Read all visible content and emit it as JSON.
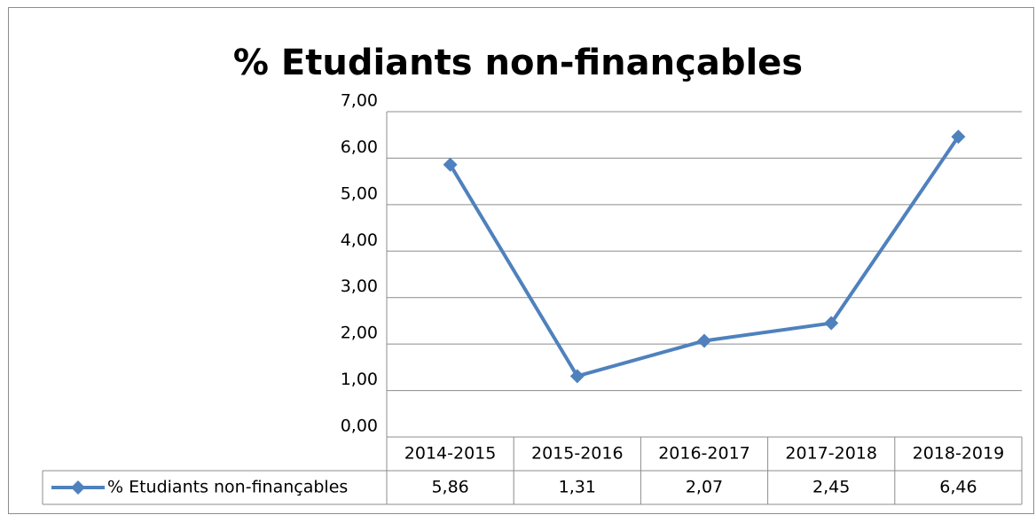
{
  "chart_data": {
    "type": "line",
    "title": "% Etudiants non-finançables",
    "categories": [
      "2014-2015",
      "2015-2016",
      "2016-2017",
      "2017-2018",
      "2018-2019"
    ],
    "series": [
      {
        "name": "% Etudiants non-finançables",
        "color": "#4f81bd",
        "values": [
          5.86,
          1.31,
          2.07,
          2.45,
          6.46
        ],
        "value_labels": [
          "5,86",
          "1,31",
          "2,07",
          "2,45",
          "6,46"
        ]
      }
    ],
    "ylim": [
      0,
      7
    ],
    "yticks": [
      {
        "value": 0,
        "label": "0,00"
      },
      {
        "value": 1,
        "label": "1,00"
      },
      {
        "value": 2,
        "label": "2,00"
      },
      {
        "value": 3,
        "label": "3,00"
      },
      {
        "value": 4,
        "label": "4,00"
      },
      {
        "value": 5,
        "label": "5,00"
      },
      {
        "value": 6,
        "label": "6,00"
      },
      {
        "value": 7,
        "label": "7,00"
      }
    ],
    "grid": true,
    "data_table": true
  }
}
